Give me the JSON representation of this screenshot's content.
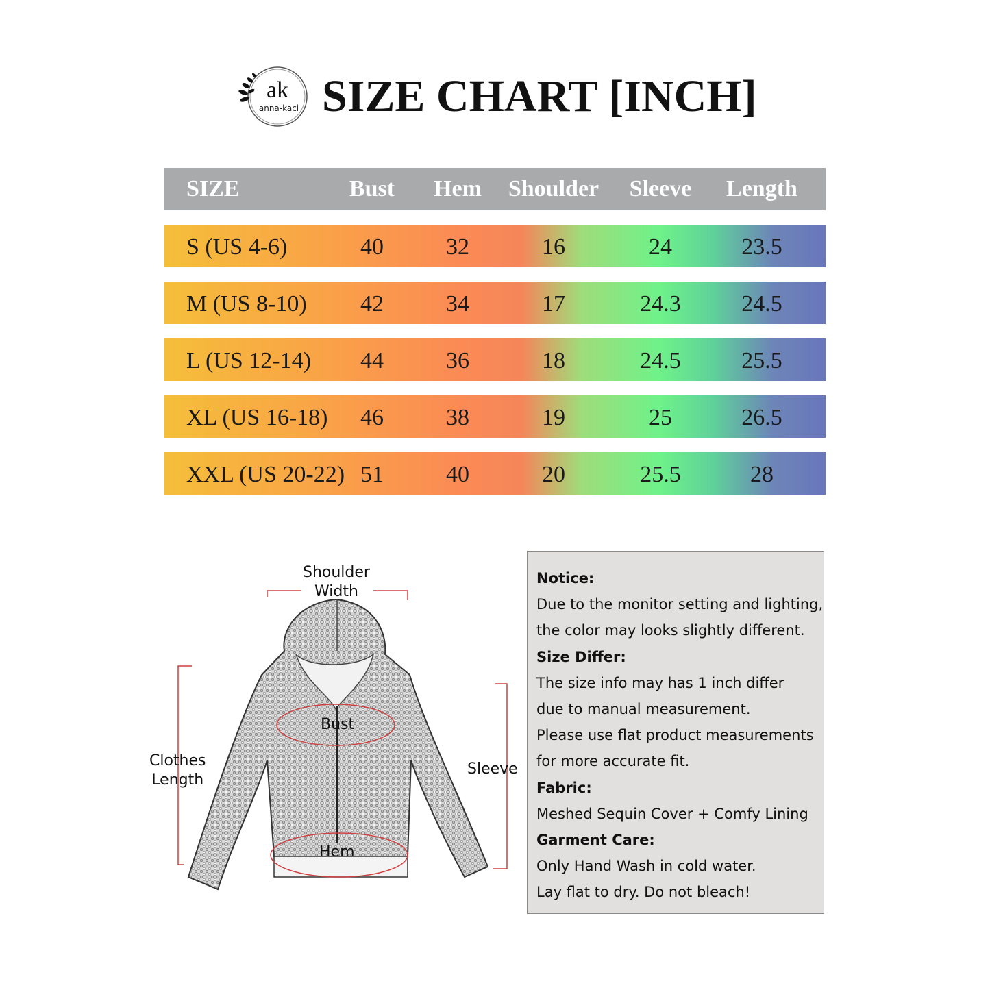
{
  "brand": {
    "logo_text": "ak",
    "logo_name": "anna-kaci"
  },
  "title": "SIZE CHART [INCH]",
  "table": {
    "headers": [
      "SIZE",
      "Bust",
      "Hem",
      "Shoulder",
      "Sleeve",
      "Length"
    ],
    "rows": [
      [
        "S (US 4-6)",
        "40",
        "32",
        "16",
        "24",
        "23.5"
      ],
      [
        "M (US 8-10)",
        "42",
        "34",
        "17",
        "24.3",
        "24.5"
      ],
      [
        "L (US 12-14)",
        "44",
        "36",
        "18",
        "24.5",
        "25.5"
      ],
      [
        "XL (US 16-18)",
        "46",
        "38",
        "19",
        "25",
        "26.5"
      ],
      [
        "XXL (US 20-22)",
        "51",
        "40",
        "20",
        "25.5",
        "28"
      ]
    ],
    "header_color": "#a9aaac",
    "row_gradient": [
      "#f5be3a",
      "#fb8a55",
      "#6ef28a",
      "#6a76bb"
    ]
  },
  "diagram": {
    "shoulder": "Shoulder",
    "shoulder2": "Width",
    "bust": "Bust",
    "length": "Clothes",
    "length2": "Length",
    "sleeve": "Sleeve",
    "hem": "Hem"
  },
  "notice": {
    "h1": "Notice:",
    "l1": "Due to the monitor setting and lighting,",
    "l2": "the color may looks slightly different.",
    "h2": "Size Differ:",
    "l3": "The size info may has 1 inch differ",
    "l4": "due to manual measurement.",
    "l5": "Please use flat product measurements",
    "l6": "for more accurate fit.",
    "h3": "Fabric:",
    "l7": "Meshed Sequin Cover + Comfy Lining",
    "h4": "Garment Care:",
    "l8": "Only Hand Wash in cold water.",
    "l9": "Lay flat to dry. Do not bleach!"
  }
}
